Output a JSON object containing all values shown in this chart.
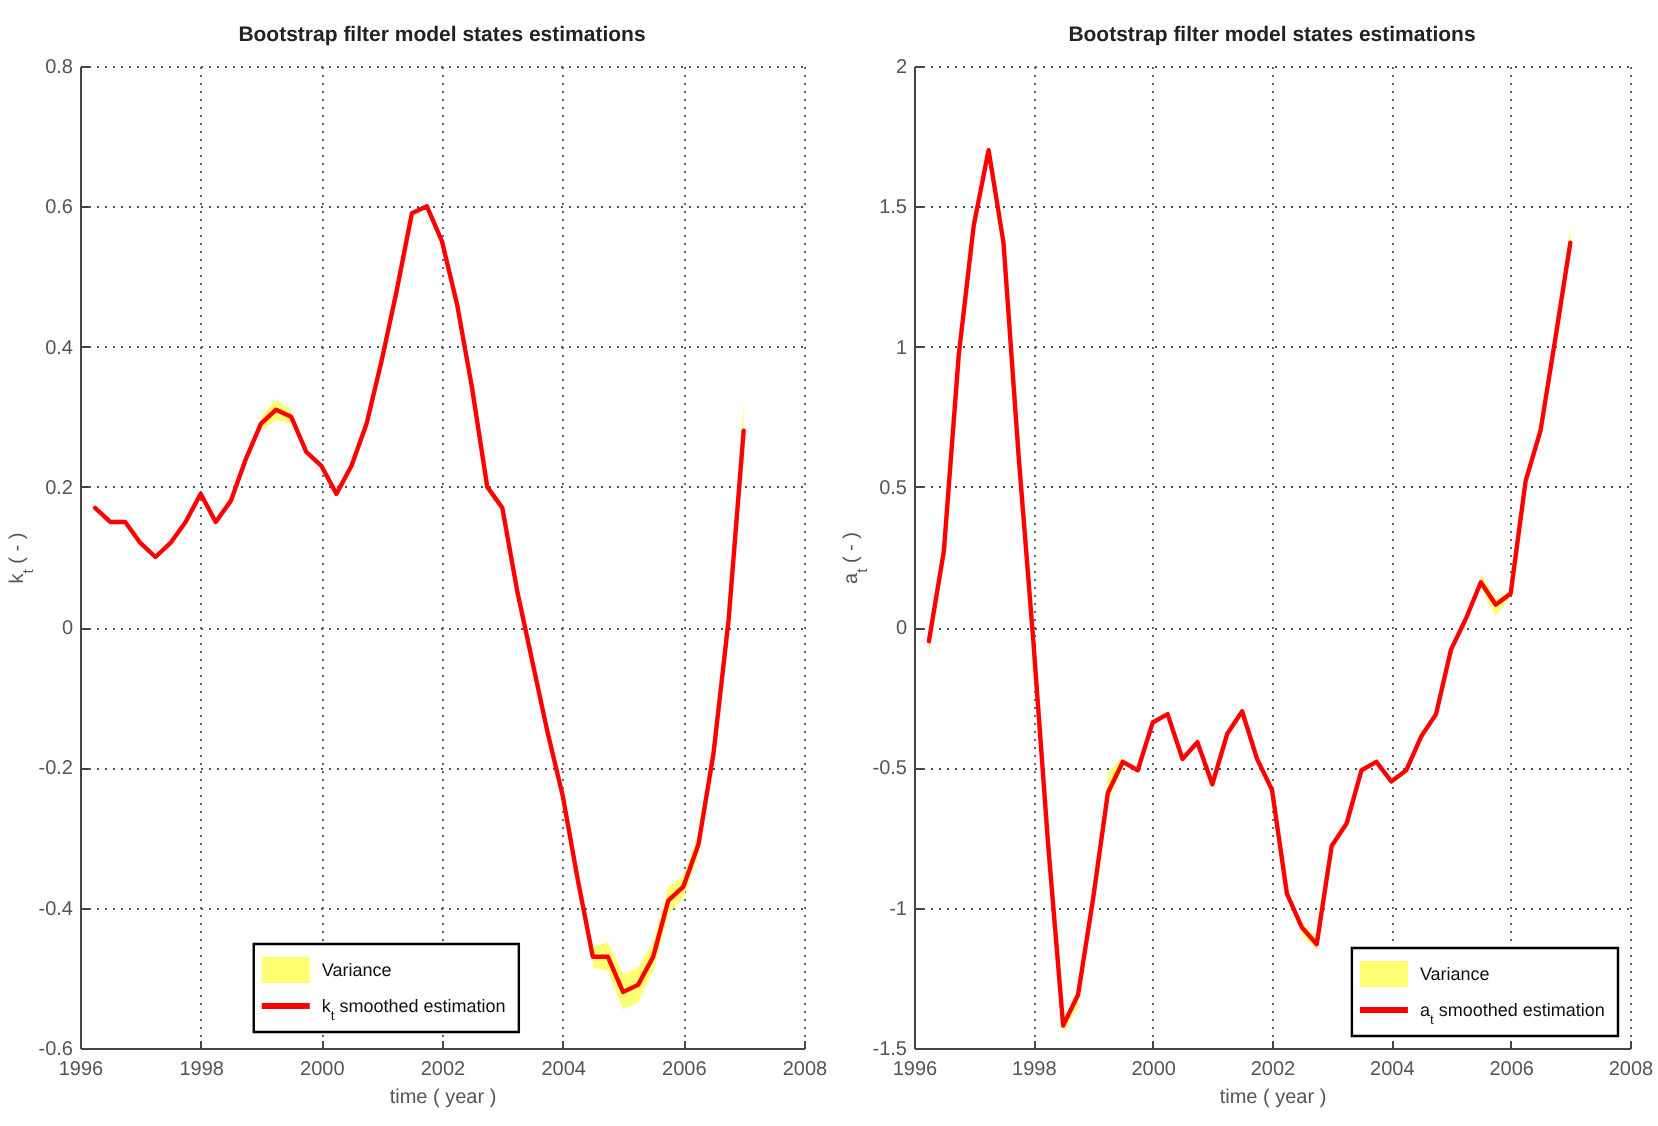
{
  "chart_data": [
    {
      "type": "line",
      "title": "Bootstrap filter model states estimations",
      "xlabel": "time ( year )",
      "ylabel": "k$_{t}$ ( - )",
      "x": [
        1996.25,
        1996.5,
        1996.75,
        1997,
        1997.25,
        1997.5,
        1997.75,
        1998,
        1998.25,
        1998.5,
        1998.75,
        1999,
        1999.25,
        1999.5,
        1999.75,
        2000,
        2000.25,
        2000.5,
        2000.75,
        2001,
        2001.25,
        2001.5,
        2001.75,
        2002,
        2002.25,
        2002.5,
        2002.75,
        2003,
        2003.25,
        2003.5,
        2003.75,
        2004,
        2004.25,
        2004.5,
        2004.75,
        2005,
        2005.25,
        2005.5,
        2005.75,
        2006,
        2006.25,
        2006.5,
        2006.75,
        2007
      ],
      "series": [
        {
          "name": "Variance",
          "type": "area",
          "color": "#ffff73",
          "values": [
            null,
            null,
            null,
            null,
            null,
            null,
            null,
            null,
            null,
            null,
            null,
            null,
            null,
            null,
            null,
            null,
            null,
            null,
            null,
            null,
            null,
            null,
            null,
            null,
            null,
            null,
            null,
            null,
            null,
            null,
            null,
            null,
            null,
            null,
            null,
            null,
            null,
            null,
            null,
            null,
            null,
            null,
            null,
            null
          ],
          "lower": [
            null,
            null,
            null,
            null,
            null,
            null,
            null,
            null,
            null,
            null,
            null,
            0.28,
            0.295,
            0.29,
            null,
            null,
            null,
            null,
            null,
            null,
            null,
            null,
            null,
            null,
            null,
            null,
            null,
            null,
            null,
            null,
            null,
            null,
            null,
            -0.485,
            -0.49,
            -0.545,
            -0.535,
            -0.49,
            -0.41,
            -0.385,
            -0.325,
            -0.19,
            -0.005,
            0.24
          ],
          "upper": [
            null,
            null,
            null,
            null,
            null,
            null,
            null,
            null,
            null,
            null,
            null,
            0.3,
            0.325,
            0.31,
            null,
            null,
            null,
            null,
            null,
            null,
            null,
            null,
            null,
            null,
            null,
            null,
            null,
            null,
            null,
            null,
            null,
            null,
            null,
            -0.455,
            -0.45,
            -0.495,
            -0.485,
            -0.45,
            -0.37,
            -0.355,
            -0.295,
            -0.17,
            0.025,
            0.32
          ]
        },
        {
          "name": "k$_{t}$ smoothed estimation",
          "color": "#ff0000",
          "values": [
            0.17,
            0.15,
            0.15,
            0.12,
            0.1,
            0.12,
            0.15,
            0.19,
            0.15,
            0.18,
            0.24,
            0.29,
            0.31,
            0.3,
            0.25,
            0.23,
            0.19,
            0.23,
            0.29,
            0.38,
            0.48,
            0.59,
            0.6,
            0.55,
            0.46,
            0.34,
            0.2,
            0.17,
            0.05,
            -0.05,
            -0.15,
            -0.24,
            -0.36,
            -0.47,
            -0.47,
            -0.52,
            -0.51,
            -0.47,
            -0.39,
            -0.37,
            -0.31,
            -0.18,
            0.01,
            0.28
          ]
        }
      ],
      "xlim": [
        1996,
        2008
      ],
      "ylim": [
        -0.6,
        0.8
      ],
      "xticks": [
        1996,
        1998,
        2000,
        2002,
        2004,
        2006,
        2008
      ],
      "yticks": [
        -0.6,
        -0.4,
        -0.2,
        0,
        0.2,
        0.4,
        0.6,
        0.8
      ],
      "grid": true,
      "legend": "bottom"
    },
    {
      "type": "line",
      "title": "Bootstrap filter model states estimations",
      "xlabel": "time ( year )",
      "ylabel": "a$_{t}$ ( - )",
      "x": [
        1996.25,
        1996.5,
        1996.75,
        1997,
        1997.25,
        1997.5,
        1997.75,
        1998,
        1998.25,
        1998.5,
        1998.75,
        1999,
        1999.25,
        1999.5,
        1999.75,
        2000,
        2000.25,
        2000.5,
        2000.75,
        2001,
        2001.25,
        2001.5,
        2001.75,
        2002,
        2002.25,
        2002.5,
        2002.75,
        2003,
        2003.25,
        2003.5,
        2003.75,
        2004,
        2004.25,
        2004.5,
        2004.75,
        2005,
        2005.25,
        2005.5,
        2005.75,
        2006,
        2006.25,
        2006.5,
        2006.75,
        2007
      ],
      "series": [
        {
          "name": "Variance",
          "type": "area",
          "color": "#ffff73",
          "values": [
            null,
            null,
            null,
            null,
            null,
            null,
            null,
            null,
            null,
            null,
            null,
            null,
            null,
            null,
            null,
            null,
            null,
            null,
            null,
            null,
            null,
            null,
            null,
            null,
            null,
            null,
            null,
            null,
            null,
            null,
            null,
            null,
            null,
            null,
            null,
            null,
            null,
            null,
            null,
            null,
            null,
            null,
            null,
            null
          ],
          "lower": [
            -0.1,
            0.26,
            null,
            null,
            null,
            null,
            null,
            null,
            null,
            -1.45,
            -1.35,
            -0.99,
            -0.62,
            -0.5,
            null,
            null,
            null,
            null,
            null,
            null,
            null,
            null,
            null,
            null,
            null,
            -1.1,
            -1.15,
            null,
            null,
            null,
            null,
            null,
            null,
            null,
            null,
            null,
            null,
            0.14,
            0.04,
            0.11,
            null,
            null,
            1.02,
            1.35
          ],
          "upper": [
            -0.04,
            0.28,
            null,
            null,
            null,
            null,
            null,
            null,
            null,
            -1.4,
            -1.29,
            -0.95,
            -0.52,
            -0.46,
            null,
            null,
            null,
            null,
            null,
            null,
            null,
            null,
            null,
            null,
            null,
            -1.05,
            -1.11,
            null,
            null,
            null,
            null,
            null,
            null,
            null,
            null,
            null,
            null,
            0.19,
            0.1,
            0.13,
            null,
            null,
            1.04,
            1.43
          ]
        },
        {
          "name": "a$_{t}$ smoothed estimation",
          "color": "#ff0000",
          "values": [
            -0.05,
            0.27,
            0.97,
            1.43,
            1.7,
            1.37,
            0.62,
            -0.05,
            -0.78,
            -1.42,
            -1.31,
            -0.97,
            -0.59,
            -0.48,
            -0.51,
            -0.34,
            -0.31,
            -0.47,
            -0.41,
            -0.56,
            -0.38,
            -0.3,
            -0.47,
            -0.58,
            -0.95,
            -1.07,
            -1.13,
            -0.78,
            -0.7,
            -0.51,
            -0.48,
            -0.55,
            -0.51,
            -0.39,
            -0.31,
            -0.08,
            0.03,
            0.16,
            0.08,
            0.12,
            0.52,
            0.7,
            1.03,
            1.37
          ]
        }
      ],
      "xlim": [
        1996,
        2008
      ],
      "ylim": [
        -1.5,
        2
      ],
      "xticks": [
        1996,
        1998,
        2000,
        2002,
        2004,
        2006,
        2008
      ],
      "yticks": [
        -1.5,
        -1,
        -0.5,
        0,
        0.5,
        1,
        1.5,
        2
      ],
      "grid": true,
      "legend": "bottom right"
    }
  ]
}
